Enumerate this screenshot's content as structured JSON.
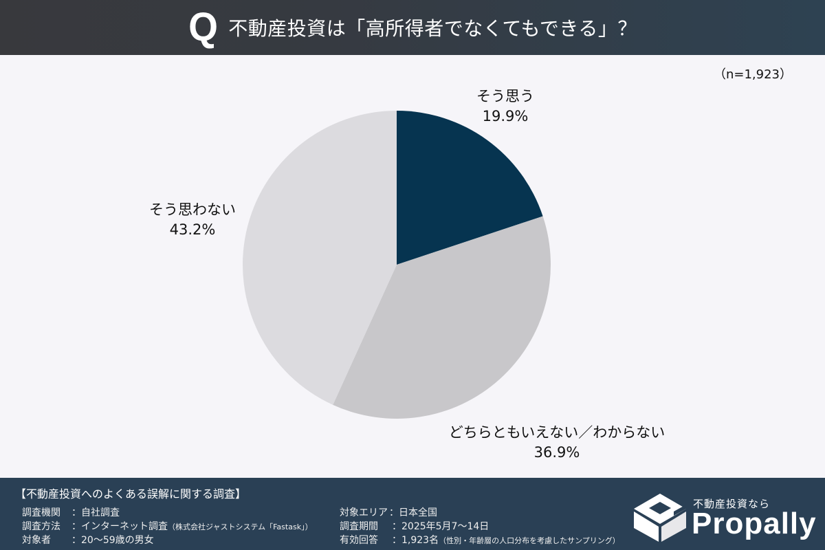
{
  "header": {
    "q_mark": "Q",
    "title": "不動産投資は「高所得者でなくてもできる」？"
  },
  "sample_size": "（n=1,923）",
  "colors": {
    "slice_agree": "#063450",
    "slice_neutral": "#c8c7ca",
    "slice_disagree": "#dcdbdf",
    "background": "#f6f5f9",
    "footer_bg": "#2a4055"
  },
  "chart_data": {
    "type": "pie",
    "title": "不動産投資は「高所得者でなくてもできる」？",
    "n": 1923,
    "start_angle": "12 o'clock, clockwise",
    "categories": [
      "そう思う",
      "どちらともいえない／わからない",
      "そう思わない"
    ],
    "values": [
      19.9,
      36.9,
      43.2
    ],
    "unit": "%",
    "labels": [
      {
        "name": "そう思う",
        "value_text": "19.9%"
      },
      {
        "name": "どちらともいえない／わからない",
        "value_text": "36.9%"
      },
      {
        "name": "そう思わない",
        "value_text": "43.2%"
      }
    ]
  },
  "footer": {
    "survey_title": "【不動産投資へのよくある誤解に関する調査】",
    "left": [
      {
        "key": "調査機関",
        "value": "：自社調査",
        "note": ""
      },
      {
        "key": "調査方法",
        "value": "：インターネット調査",
        "note": "（株式会社ジャストシステム「Fastask」）"
      },
      {
        "key": "対象者",
        "value": "：20〜59歳の男女",
        "note": ""
      }
    ],
    "right": [
      {
        "key": "対象エリア",
        "value": "：日本全国",
        "note": ""
      },
      {
        "key": "調査期間",
        "value": "：2025年5月7〜14日",
        "note": ""
      },
      {
        "key": "有効回答",
        "value": "：1,923名",
        "note": "（性別・年齢層の人口分布を考慮したサンプリング）"
      }
    ]
  },
  "brand": {
    "tagline": "不動産投資なら",
    "name": "Propally",
    "icon": "propally-box-logo-icon"
  }
}
